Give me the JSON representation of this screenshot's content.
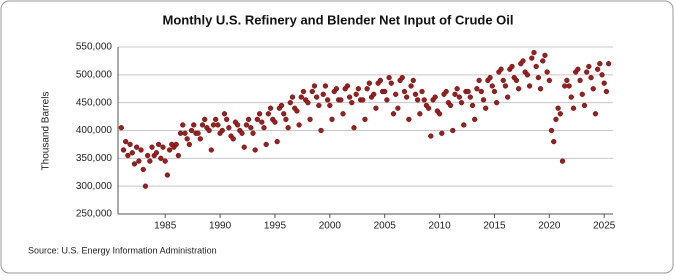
{
  "chart_data": {
    "type": "scatter",
    "title": "Monthly U.S. Refinery and Blender Net Input of Crude Oil",
    "y_label": "Thousand Barrels",
    "source": "Source: U.S. Energy Information Administration",
    "color": "#a11d1d",
    "grid": true,
    "xlim": [
      1980.7,
      2025.8
    ],
    "xticks": [
      1985,
      1990,
      1995,
      2000,
      2005,
      2010,
      2015,
      2020,
      2025
    ],
    "ylim": [
      250000,
      550000
    ],
    "yticks": [
      {
        "value": 250000,
        "label": "250,000"
      },
      {
        "value": 300000,
        "label": "300,000"
      },
      {
        "value": 350000,
        "label": "350,000"
      },
      {
        "value": 400000,
        "label": "400,000"
      },
      {
        "value": 450000,
        "label": "450,000"
      },
      {
        "value": 500000,
        "label": "500,000"
      },
      {
        "value": 550000,
        "label": "550,000"
      }
    ],
    "x": [
      1981,
      1981.2,
      1981.4,
      1981.6,
      1981.8,
      1982,
      1982.2,
      1982.4,
      1982.6,
      1982.8,
      1983,
      1983.2,
      1983.4,
      1983.6,
      1983.8,
      1984,
      1984.2,
      1984.4,
      1984.6,
      1984.8,
      1985,
      1985.2,
      1985.4,
      1985.6,
      1985.8,
      1986,
      1986.2,
      1986.4,
      1986.6,
      1986.8,
      1987,
      1987.2,
      1987.4,
      1987.6,
      1987.8,
      1988,
      1988.2,
      1988.4,
      1988.6,
      1988.8,
      1989,
      1989.2,
      1989.4,
      1989.6,
      1989.8,
      1990,
      1990.2,
      1990.4,
      1990.6,
      1990.8,
      1991,
      1991.2,
      1991.4,
      1991.6,
      1991.8,
      1992,
      1992.2,
      1992.4,
      1992.6,
      1992.8,
      1993,
      1993.2,
      1993.4,
      1993.6,
      1993.8,
      1994,
      1994.2,
      1994.4,
      1994.6,
      1994.8,
      1995,
      1995.2,
      1995.4,
      1995.6,
      1995.8,
      1996,
      1996.2,
      1996.4,
      1996.6,
      1996.8,
      1997,
      1997.2,
      1997.4,
      1997.6,
      1997.8,
      1998,
      1998.2,
      1998.4,
      1998.6,
      1998.8,
      1999,
      1999.2,
      1999.4,
      1999.6,
      1999.8,
      2000,
      2000.2,
      2000.4,
      2000.6,
      2000.8,
      2001,
      2001.2,
      2001.4,
      2001.6,
      2001.8,
      2002,
      2002.2,
      2002.4,
      2002.6,
      2002.8,
      2003,
      2003.2,
      2003.4,
      2003.6,
      2003.8,
      2004,
      2004.2,
      2004.4,
      2004.6,
      2004.8,
      2005,
      2005.2,
      2005.4,
      2005.6,
      2005.8,
      2006,
      2006.2,
      2006.4,
      2006.6,
      2006.8,
      2007,
      2007.2,
      2007.4,
      2007.6,
      2007.8,
      2008,
      2008.2,
      2008.4,
      2008.6,
      2008.8,
      2009,
      2009.2,
      2009.4,
      2009.6,
      2009.8,
      2010,
      2010.2,
      2010.4,
      2010.6,
      2010.8,
      2011,
      2011.2,
      2011.4,
      2011.6,
      2011.8,
      2012,
      2012.2,
      2012.4,
      2012.6,
      2012.8,
      2013,
      2013.2,
      2013.4,
      2013.6,
      2013.8,
      2014,
      2014.2,
      2014.4,
      2014.6,
      2014.8,
      2015,
      2015.2,
      2015.4,
      2015.6,
      2015.8,
      2016,
      2016.2,
      2016.4,
      2016.6,
      2016.8,
      2017,
      2017.2,
      2017.4,
      2017.6,
      2017.8,
      2018,
      2018.2,
      2018.4,
      2018.6,
      2018.8,
      2019,
      2019.2,
      2019.4,
      2019.6,
      2019.8,
      2020,
      2020.2,
      2020.4,
      2020.6,
      2020.8,
      2021,
      2021.2,
      2021.4,
      2021.6,
      2021.8,
      2022,
      2022.2,
      2022.4,
      2022.6,
      2022.8,
      2023,
      2023.2,
      2023.4,
      2023.6,
      2023.8,
      2024,
      2024.2,
      2024.4,
      2024.6,
      2024.8,
      2025,
      2025.2,
      2025.4
    ],
    "values": [
      405000,
      365000,
      380000,
      355000,
      375000,
      360000,
      340000,
      370000,
      345000,
      365000,
      330000,
      300000,
      355000,
      345000,
      370000,
      355000,
      360000,
      375000,
      350000,
      370000,
      345000,
      320000,
      365000,
      375000,
      370000,
      375000,
      355000,
      395000,
      410000,
      395000,
      385000,
      375000,
      400000,
      410000,
      395000,
      395000,
      385000,
      410000,
      420000,
      405000,
      400000,
      365000,
      410000,
      420000,
      410000,
      395000,
      400000,
      430000,
      420000,
      405000,
      390000,
      385000,
      415000,
      410000,
      400000,
      395000,
      370000,
      410000,
      420000,
      405000,
      395000,
      365000,
      420000,
      430000,
      415000,
      405000,
      375000,
      430000,
      440000,
      420000,
      415000,
      380000,
      440000,
      445000,
      430000,
      420000,
      405000,
      450000,
      460000,
      440000,
      435000,
      410000,
      460000,
      470000,
      455000,
      450000,
      420000,
      470000,
      480000,
      460000,
      445000,
      400000,
      465000,
      480000,
      455000,
      445000,
      420000,
      470000,
      475000,
      455000,
      455000,
      430000,
      475000,
      480000,
      460000,
      450000,
      405000,
      465000,
      475000,
      455000,
      455000,
      420000,
      475000,
      485000,
      460000,
      465000,
      440000,
      485000,
      490000,
      470000,
      470000,
      455000,
      495000,
      485000,
      430000,
      465000,
      440000,
      490000,
      495000,
      470000,
      460000,
      420000,
      480000,
      490000,
      465000,
      455000,
      430000,
      470000,
      455000,
      445000,
      440000,
      390000,
      455000,
      460000,
      435000,
      430000,
      395000,
      465000,
      470000,
      450000,
      445000,
      400000,
      465000,
      475000,
      460000,
      450000,
      410000,
      470000,
      470000,
      460000,
      445000,
      420000,
      475000,
      490000,
      470000,
      455000,
      440000,
      490000,
      495000,
      480000,
      470000,
      450000,
      505000,
      510000,
      490000,
      480000,
      460000,
      510000,
      515000,
      495000,
      490000,
      475000,
      520000,
      525000,
      505000,
      500000,
      480000,
      530000,
      540000,
      515000,
      495000,
      475000,
      525000,
      535000,
      505000,
      490000,
      400000,
      380000,
      420000,
      440000,
      430000,
      345000,
      480000,
      490000,
      480000,
      460000,
      440000,
      505000,
      510000,
      490000,
      465000,
      445000,
      505000,
      515000,
      495000,
      475000,
      430000,
      510000,
      520000,
      500000,
      485000,
      470000,
      520000
    ]
  }
}
